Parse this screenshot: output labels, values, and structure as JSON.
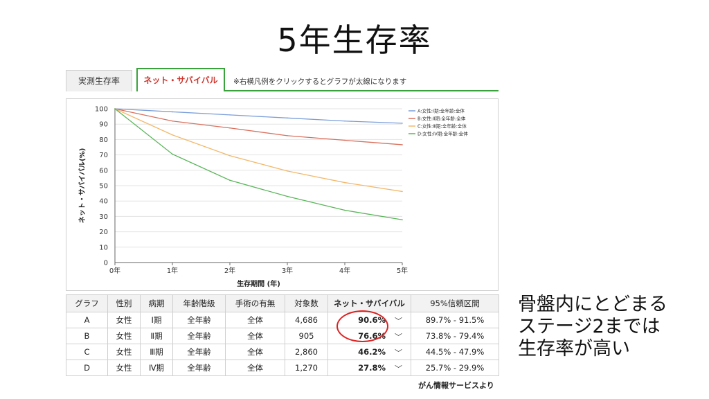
{
  "title": "5年生存率",
  "tabs": {
    "measured_label": "実測生存率",
    "net_label": "ネット・サバイバル",
    "note": "※右横凡例をクリックするとグラフが太線になります"
  },
  "chart_data": {
    "type": "line",
    "x": [
      "0年",
      "1年",
      "2年",
      "3年",
      "4年",
      "5年"
    ],
    "xlabel": "生存期間 (年)",
    "ylabel": "ネット・サバイバル(%)",
    "ylim": [
      0,
      100
    ],
    "yticks": [
      0,
      10,
      20,
      30,
      40,
      50,
      60,
      70,
      80,
      90,
      100
    ],
    "grid": "horizontal",
    "legend_position": "top-right",
    "series": [
      {
        "name": "A:女性:Ⅰ期:全年齢:全体",
        "color": "#7b9fd9",
        "values": [
          100,
          98,
          96,
          94,
          92,
          90.6
        ]
      },
      {
        "name": "B:女性:Ⅱ期:全年齢:全体",
        "color": "#d9705e",
        "values": [
          100,
          92,
          87.5,
          82.5,
          79.5,
          76.6
        ]
      },
      {
        "name": "C:女性:Ⅲ期:全年齢:全体",
        "color": "#f2b86a",
        "values": [
          100,
          83,
          69.5,
          59.5,
          52,
          46.2
        ]
      },
      {
        "name": "D:女性:Ⅳ期:全年齢:全体",
        "color": "#5ab55a",
        "values": [
          100,
          70.5,
          53.5,
          43,
          34,
          27.8
        ]
      }
    ]
  },
  "table": {
    "headers": [
      "グラフ",
      "性別",
      "病期",
      "年齢階級",
      "手術の有無",
      "対象数",
      "ネット・サバイバル",
      "95%信頼区間"
    ],
    "rows": [
      {
        "graph": "A",
        "sex": "女性",
        "stage": "Ⅰ期",
        "age": "全年齢",
        "surgery": "全体",
        "count": "4,686",
        "net": "90.6%",
        "ci": "89.7% - 91.5%"
      },
      {
        "graph": "B",
        "sex": "女性",
        "stage": "Ⅱ期",
        "age": "全年齢",
        "surgery": "全体",
        "count": "905",
        "net": "76.6%",
        "ci": "73.8% - 79.4%"
      },
      {
        "graph": "C",
        "sex": "女性",
        "stage": "Ⅲ期",
        "age": "全年齢",
        "surgery": "全体",
        "count": "2,860",
        "net": "46.2%",
        "ci": "44.5% - 47.9%"
      },
      {
        "graph": "D",
        "sex": "女性",
        "stage": "Ⅳ期",
        "age": "全年齢",
        "surgery": "全体",
        "count": "1,270",
        "net": "27.8%",
        "ci": "25.7% - 29.9%"
      }
    ],
    "chevron": "﹀"
  },
  "side_note": {
    "line1": "骨盤内にとどまる",
    "line2": "ステージ2までは",
    "line3": "生存率が高い"
  },
  "source": "がん情報サービスより"
}
